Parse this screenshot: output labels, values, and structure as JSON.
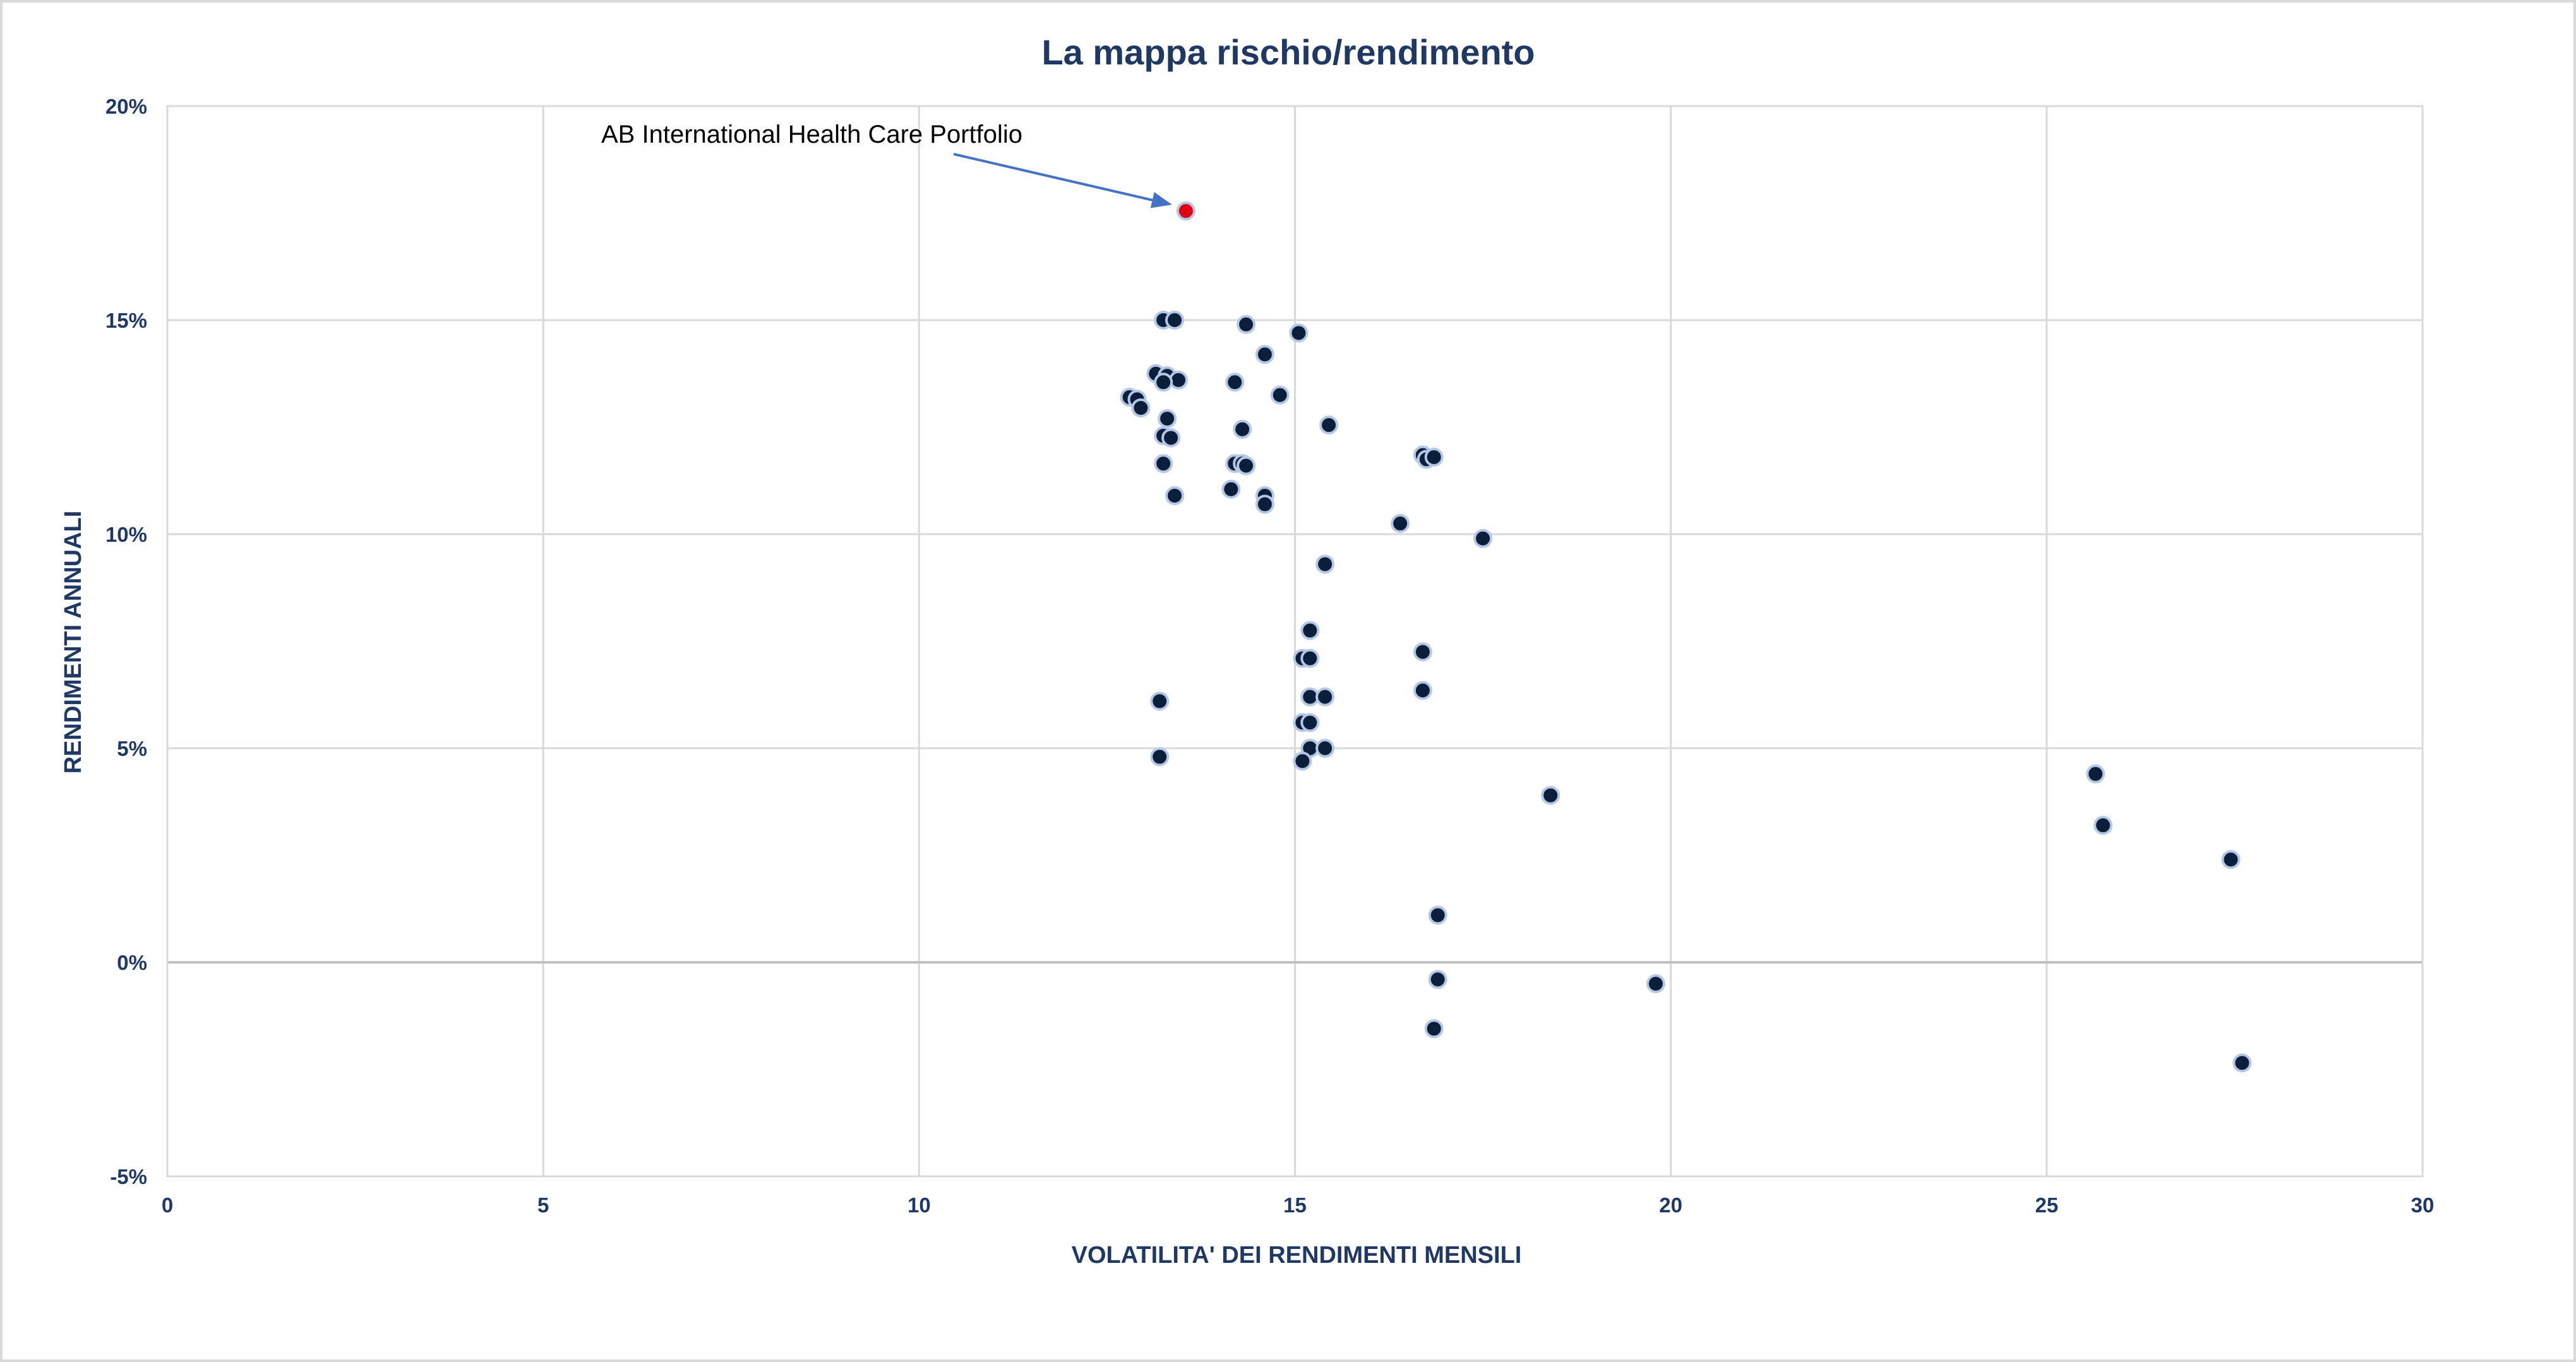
{
  "chart_data": {
    "type": "scatter",
    "title": "La mappa rischio/rendimento",
    "xlabel": "VOLATILITA' DEI RENDIMENTI MENSILI",
    "ylabel": "RENDIMENTI ANNUALI",
    "xlim": [
      0,
      30
    ],
    "ylim": [
      -5,
      20
    ],
    "x_ticks": [
      "0",
      "5",
      "10",
      "15",
      "20",
      "25",
      "30"
    ],
    "y_ticks": [
      "-5%",
      "0%",
      "5%",
      "10%",
      "15%",
      "20%"
    ],
    "grid": true,
    "legend": "none",
    "point_color": "#0b1f3a",
    "highlight_color": "#e00012",
    "highlight": {
      "label": "AB International Health Care Portfolio",
      "x": 13.55,
      "y": 17.55
    },
    "points": [
      {
        "x": 13.25,
        "y": 15.0
      },
      {
        "x": 13.4,
        "y": 15.0
      },
      {
        "x": 14.35,
        "y": 14.9
      },
      {
        "x": 15.05,
        "y": 14.7
      },
      {
        "x": 14.6,
        "y": 14.2
      },
      {
        "x": 13.15,
        "y": 13.75
      },
      {
        "x": 13.3,
        "y": 13.7
      },
      {
        "x": 13.45,
        "y": 13.6
      },
      {
        "x": 13.25,
        "y": 13.55
      },
      {
        "x": 14.2,
        "y": 13.55
      },
      {
        "x": 14.8,
        "y": 13.25
      },
      {
        "x": 12.8,
        "y": 13.2
      },
      {
        "x": 12.9,
        "y": 13.15
      },
      {
        "x": 12.95,
        "y": 12.95
      },
      {
        "x": 13.3,
        "y": 12.7
      },
      {
        "x": 15.45,
        "y": 12.55
      },
      {
        "x": 14.3,
        "y": 12.45
      },
      {
        "x": 13.25,
        "y": 12.3
      },
      {
        "x": 13.35,
        "y": 12.25
      },
      {
        "x": 16.7,
        "y": 11.85
      },
      {
        "x": 16.75,
        "y": 11.75
      },
      {
        "x": 16.85,
        "y": 11.8
      },
      {
        "x": 13.25,
        "y": 11.65
      },
      {
        "x": 14.2,
        "y": 11.65
      },
      {
        "x": 14.3,
        "y": 11.65
      },
      {
        "x": 14.35,
        "y": 11.6
      },
      {
        "x": 14.15,
        "y": 11.05
      },
      {
        "x": 14.6,
        "y": 10.9
      },
      {
        "x": 13.4,
        "y": 10.9
      },
      {
        "x": 14.6,
        "y": 10.7
      },
      {
        "x": 16.4,
        "y": 10.25
      },
      {
        "x": 17.5,
        "y": 9.9
      },
      {
        "x": 15.4,
        "y": 9.3
      },
      {
        "x": 15.2,
        "y": 7.75
      },
      {
        "x": 16.7,
        "y": 7.25
      },
      {
        "x": 15.1,
        "y": 7.1
      },
      {
        "x": 15.2,
        "y": 7.1
      },
      {
        "x": 16.7,
        "y": 6.35
      },
      {
        "x": 15.2,
        "y": 6.2
      },
      {
        "x": 15.4,
        "y": 6.2
      },
      {
        "x": 13.2,
        "y": 6.1
      },
      {
        "x": 15.1,
        "y": 5.6
      },
      {
        "x": 15.2,
        "y": 5.6
      },
      {
        "x": 15.2,
        "y": 5.0
      },
      {
        "x": 15.4,
        "y": 5.0
      },
      {
        "x": 13.2,
        "y": 4.8
      },
      {
        "x": 15.1,
        "y": 4.7
      },
      {
        "x": 25.65,
        "y": 4.4
      },
      {
        "x": 18.4,
        "y": 3.9
      },
      {
        "x": 25.75,
        "y": 3.2
      },
      {
        "x": 27.45,
        "y": 2.4
      },
      {
        "x": 16.9,
        "y": 1.1
      },
      {
        "x": 16.9,
        "y": -0.4
      },
      {
        "x": 19.8,
        "y": -0.5
      },
      {
        "x": 16.85,
        "y": -1.55
      },
      {
        "x": 27.6,
        "y": -2.35
      }
    ]
  }
}
